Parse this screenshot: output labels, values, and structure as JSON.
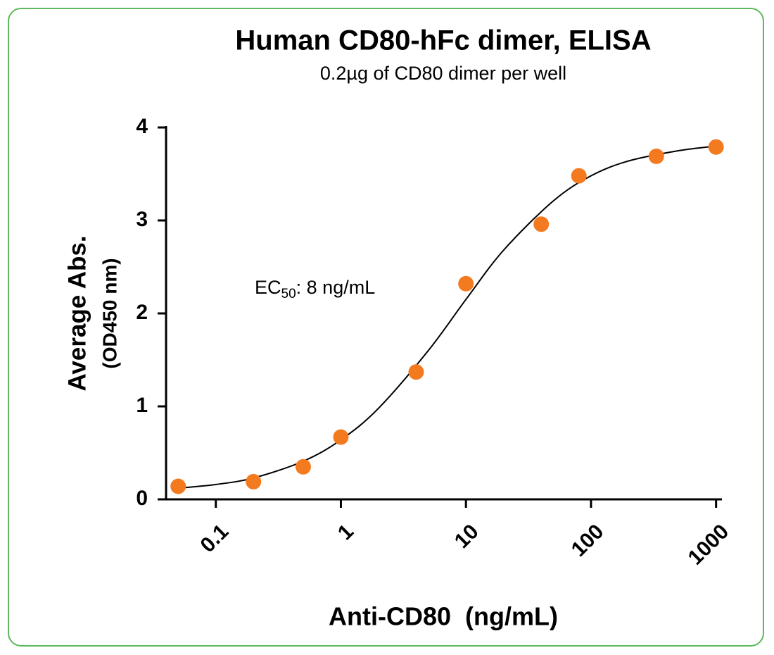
{
  "chart_data": {
    "type": "scatter",
    "title": "Human CD80-hFc dimer, ELISA",
    "subtitle": "0.2µg of CD80 dimer per well",
    "xlabel": "Anti-CD80  (ng/mL)",
    "ylabel": [
      "Average Abs.",
      "(OD450 nm)"
    ],
    "annotation": [
      "EC",
      "50",
      ": 8 ng/mL"
    ],
    "xscale": "log",
    "xlim": [
      0.04,
      1100
    ],
    "xticks": [
      0.1,
      1,
      10,
      100,
      1000
    ],
    "ylim": [
      0,
      4
    ],
    "yticks": [
      0,
      1,
      2,
      3,
      4
    ],
    "grid": false,
    "series": [
      {
        "type": "scatter",
        "color": "#f47a20",
        "x": [
          0.05,
          0.2,
          0.5,
          1,
          4,
          10,
          40,
          80,
          333,
          1000
        ],
        "values": [
          0.14,
          0.19,
          0.35,
          0.67,
          1.37,
          2.32,
          2.96,
          3.48,
          3.69,
          3.79
        ]
      },
      {
        "type": "line",
        "color": "#000000",
        "x": [
          0.05,
          0.1,
          0.2,
          0.5,
          1,
          2,
          5,
          10,
          20,
          50,
          100,
          200,
          500,
          1000
        ],
        "values": [
          0.12,
          0.16,
          0.23,
          0.41,
          0.64,
          0.98,
          1.6,
          2.15,
          2.68,
          3.21,
          3.48,
          3.64,
          3.75,
          3.8
        ]
      }
    ]
  }
}
